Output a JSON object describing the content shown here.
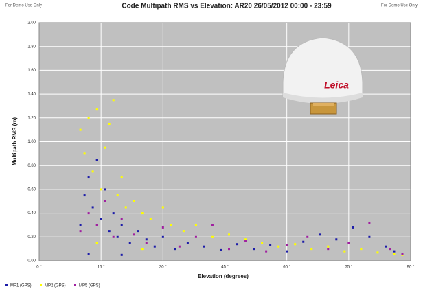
{
  "chart_data": {
    "type": "scatter",
    "title": "Code Multipath RMS vs Elevation: AR20 26/05/2012 00:00 - 23:59",
    "notes": [
      "For Demo Use Only",
      "For Demo Use Only"
    ],
    "antenna_logo": "Leica",
    "x_label": "Elevation (degrees)",
    "y_label": "Multipath RMS (m)",
    "xlim": [
      0,
      90
    ],
    "ylim": [
      0,
      2
    ],
    "xticks": [
      {
        "value": 0,
        "label": "0 °"
      },
      {
        "value": 15,
        "label": "15 °"
      },
      {
        "value": 30,
        "label": "30 °"
      },
      {
        "value": 45,
        "label": "45 °"
      },
      {
        "value": 60,
        "label": "60 °"
      },
      {
        "value": 75,
        "label": "75 °"
      },
      {
        "value": 90,
        "label": "90 °"
      }
    ],
    "yticks": [
      {
        "value": 0,
        "label": "0.00"
      },
      {
        "value": 0.2,
        "label": "0.20"
      },
      {
        "value": 0.4,
        "label": "0.40"
      },
      {
        "value": 0.6,
        "label": "0.60"
      },
      {
        "value": 0.8,
        "label": "0.80"
      },
      {
        "value": 1,
        "label": "1.00"
      },
      {
        "value": 1.2,
        "label": "1.20"
      },
      {
        "value": 1.4,
        "label": "1.40"
      },
      {
        "value": 1.6,
        "label": "1.60"
      },
      {
        "value": 1.8,
        "label": "1.80"
      },
      {
        "value": 2,
        "label": "2.00"
      }
    ],
    "grid": true,
    "legend": "bottom-left",
    "series": [
      {
        "name": "MP1 (GPS)",
        "color": "#1c1ca8",
        "x": [
          10,
          11,
          12,
          13,
          14,
          15,
          16,
          17,
          18,
          19,
          20,
          22,
          24,
          26,
          28,
          30,
          33,
          36,
          40,
          44,
          48,
          52,
          56,
          60,
          64,
          68,
          72,
          76,
          80,
          84,
          86,
          12,
          20
        ],
        "values": [
          0.3,
          0.55,
          0.7,
          0.45,
          0.85,
          0.35,
          0.6,
          0.25,
          0.4,
          0.2,
          0.3,
          0.15,
          0.25,
          0.18,
          0.12,
          0.2,
          0.1,
          0.15,
          0.12,
          0.09,
          0.14,
          0.1,
          0.13,
          0.08,
          0.16,
          0.22,
          0.18,
          0.28,
          0.2,
          0.12,
          0.08,
          0.06,
          0.05
        ]
      },
      {
        "name": "MP2 (GPS)",
        "color": "#ffff00",
        "x": [
          10,
          11,
          12,
          13,
          14,
          15,
          16,
          17,
          18,
          19,
          20,
          21,
          23,
          25,
          27,
          30,
          32,
          35,
          38,
          42,
          46,
          50,
          54,
          58,
          62,
          66,
          70,
          74,
          78,
          82,
          86,
          88,
          14,
          25
        ],
        "values": [
          1.1,
          0.9,
          1.2,
          0.75,
          1.27,
          0.6,
          0.95,
          1.15,
          1.35,
          0.55,
          0.7,
          0.45,
          0.5,
          0.4,
          0.35,
          0.45,
          0.3,
          0.25,
          0.3,
          0.2,
          0.22,
          0.18,
          0.15,
          0.12,
          0.14,
          0.1,
          0.12,
          0.08,
          0.1,
          0.07,
          0.06,
          0.05,
          0.15,
          0.1
        ]
      },
      {
        "name": "MP5 (GPS)",
        "color": "#a020a0",
        "x": [
          10,
          12,
          14,
          16,
          18,
          20,
          23,
          26,
          30,
          34,
          38,
          42,
          46,
          50,
          55,
          60,
          65,
          70,
          75,
          80,
          85,
          88
        ],
        "values": [
          0.25,
          0.4,
          0.3,
          0.5,
          0.2,
          0.35,
          0.22,
          0.15,
          0.28,
          0.12,
          0.2,
          0.3,
          0.1,
          0.17,
          0.08,
          0.13,
          0.2,
          0.1,
          0.15,
          0.32,
          0.1,
          0.06
        ]
      }
    ]
  }
}
